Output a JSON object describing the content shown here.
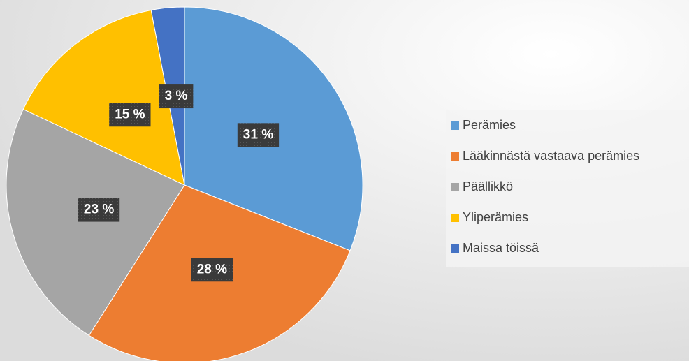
{
  "chart_data": {
    "type": "pie",
    "categories": [
      "Perämies",
      "Lääkinnästä vastaava perämies",
      "Päällikkö",
      "Yliperämies",
      "Maissa töissä"
    ],
    "values": [
      31,
      28,
      23,
      15,
      3
    ],
    "value_labels": [
      "31 %",
      "28 %",
      "23 %",
      "15 %",
      "3 %"
    ],
    "colors": [
      "#5b9bd5",
      "#ed7d31",
      "#a5a5a5",
      "#ffc000",
      "#4472c4"
    ],
    "legend": "right"
  }
}
